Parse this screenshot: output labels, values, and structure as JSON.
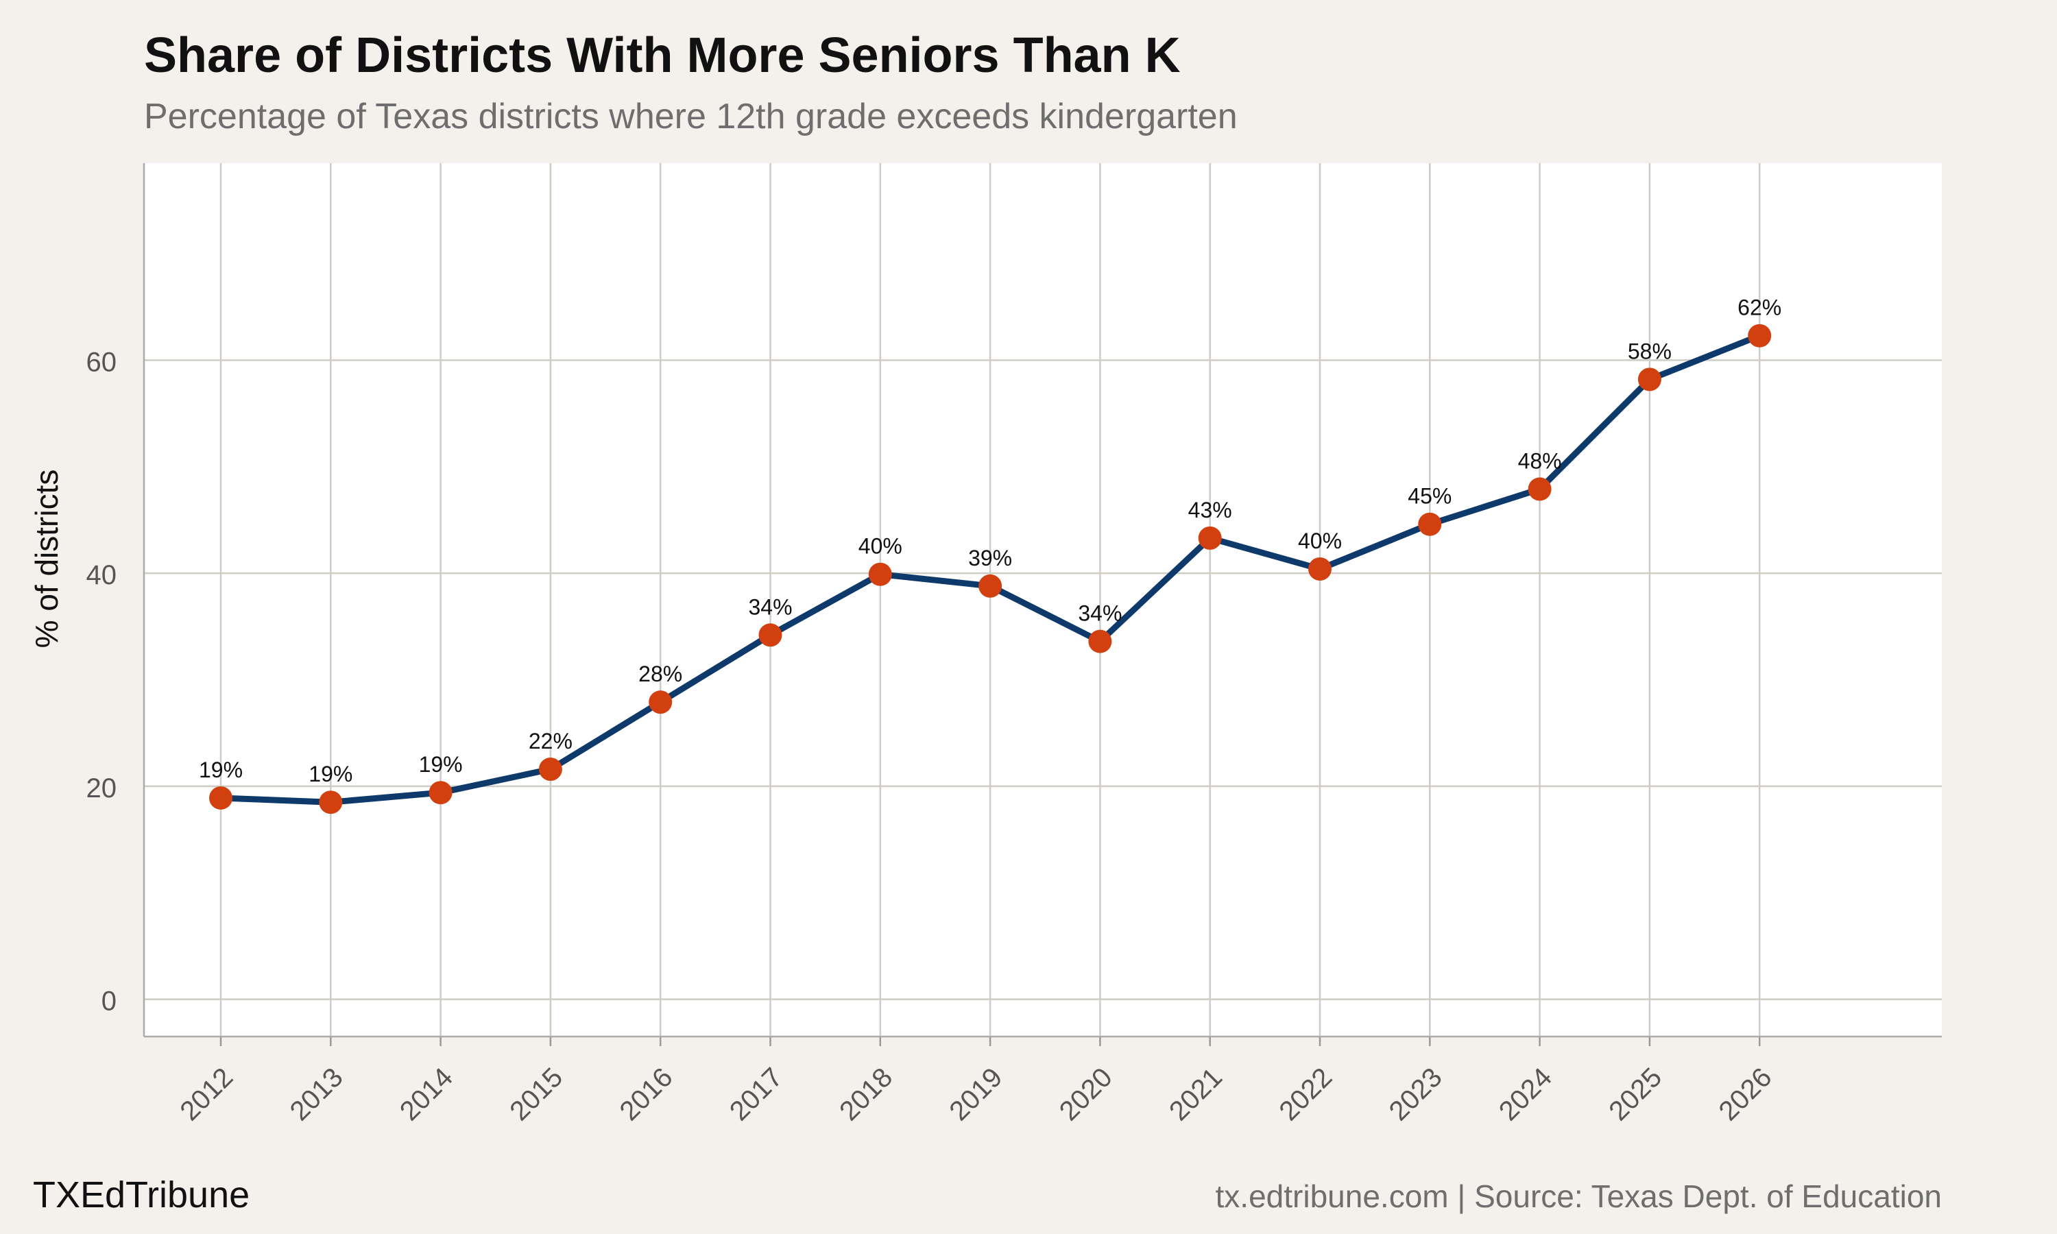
{
  "header": {
    "title": "Share of Districts With More Seniors Than K",
    "subtitle": "Percentage of Texas districts where 12th grade exceeds kindergarten"
  },
  "footer": {
    "brand": "TXEdTribune",
    "source": "tx.edtribune.com | Source: Texas Dept. of Education"
  },
  "colors": {
    "background": "#f4f1ec",
    "panel": "#ffffff",
    "grid": "#cfccc5",
    "line": "#0d3a6b",
    "point": "#d2400f"
  },
  "chart_data": {
    "type": "line",
    "title": "Share of Districts With More Seniors Than K",
    "subtitle": "Percentage of Texas districts where 12th grade exceeds kindergarten",
    "xlabel": "",
    "ylabel": "% of districts",
    "x": [
      "2012",
      "2013",
      "2014",
      "2015",
      "2016",
      "2017",
      "2018",
      "2019",
      "2020",
      "2021",
      "2022",
      "2023",
      "2024",
      "2025",
      "2026"
    ],
    "values": [
      18.9,
      18.5,
      19.4,
      21.6,
      27.9,
      34.2,
      39.9,
      38.8,
      33.6,
      43.3,
      40.4,
      44.6,
      47.9,
      58.2,
      62.3
    ],
    "data_labels": [
      "19%",
      "19%",
      "19%",
      "22%",
      "28%",
      "34%",
      "40%",
      "39%",
      "34%",
      "43%",
      "40%",
      "45%",
      "48%",
      "58%",
      "62%"
    ],
    "yticks": [
      0,
      20,
      40,
      60
    ],
    "ylim": [
      -3.5,
      78.5
    ],
    "grid": true,
    "legend": "none"
  }
}
